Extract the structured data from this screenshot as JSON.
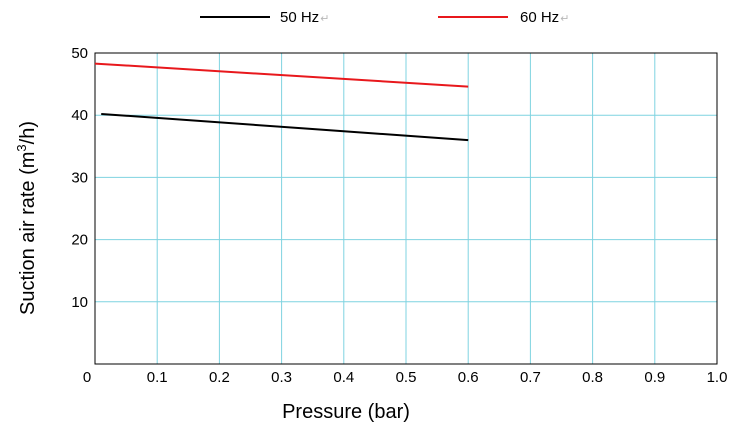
{
  "chart_data": {
    "type": "line",
    "xlabel": "Pressure (bar)",
    "ylabel_main": "Suction air rate (m",
    "ylabel_sup": "3",
    "ylabel_tail": "/h)",
    "xlim": [
      0,
      1.0
    ],
    "ylim": [
      0,
      50
    ],
    "x_ticks": [
      "0",
      "0.1",
      "0.2",
      "0.3",
      "0.4",
      "0.5",
      "0.6",
      "0.7",
      "0.8",
      "0.9",
      "1.0"
    ],
    "y_ticks": [
      "10",
      "20",
      "30",
      "40",
      "50"
    ],
    "grid": true,
    "legend_position": "top",
    "series": [
      {
        "name": "50 Hz",
        "color": "#000000",
        "x": [
          0.01,
          0.6
        ],
        "y": [
          40.2,
          36.0
        ]
      },
      {
        "name": "60 Hz",
        "color": "#e8181c",
        "x": [
          0.0,
          0.6
        ],
        "y": [
          48.3,
          44.6
        ]
      }
    ],
    "legend_marks": "↵",
    "grid_color": "#7fd3e0"
  }
}
